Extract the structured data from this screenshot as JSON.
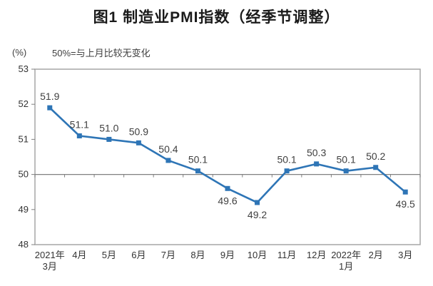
{
  "chart_data": {
    "type": "line",
    "title": "图1 制造业PMI指数（经季节调整）",
    "unit_label": "(%)",
    "note": "50%=与上月比较无变化",
    "x": [
      "2021年\n3月",
      "4月",
      "5月",
      "6月",
      "7月",
      "8月",
      "9月",
      "10月",
      "11月",
      "12月",
      "2022年\n1月",
      "2月",
      "3月"
    ],
    "values": [
      51.9,
      51.1,
      51.0,
      50.9,
      50.4,
      50.1,
      49.6,
      49.2,
      50.1,
      50.3,
      50.1,
      50.2,
      49.5
    ],
    "data_labels": [
      "51.9",
      "51.1",
      "51.0",
      "50.9",
      "50.4",
      "50.1",
      "49.6",
      "49.2",
      "50.1",
      "50.3",
      "50.1",
      "50.2",
      "49.5"
    ],
    "label_side": [
      "above",
      "above",
      "above",
      "above",
      "above",
      "above",
      "below",
      "below",
      "above",
      "above",
      "above",
      "above",
      "below"
    ],
    "ylim": [
      48,
      53
    ],
    "yticks": [
      48,
      49,
      50,
      51,
      52,
      53
    ],
    "reference_line": 50,
    "xlabel": "",
    "ylabel": "(%)",
    "grid": false,
    "legend_position": "none",
    "colors": {
      "line": "#2e75b6",
      "marker": "#2e75b6",
      "data_label": "#404040",
      "tick_label": "#333333",
      "axis_line": "#808080",
      "plot_border": "#a6a6a6",
      "title": "#1a1a1a"
    }
  }
}
